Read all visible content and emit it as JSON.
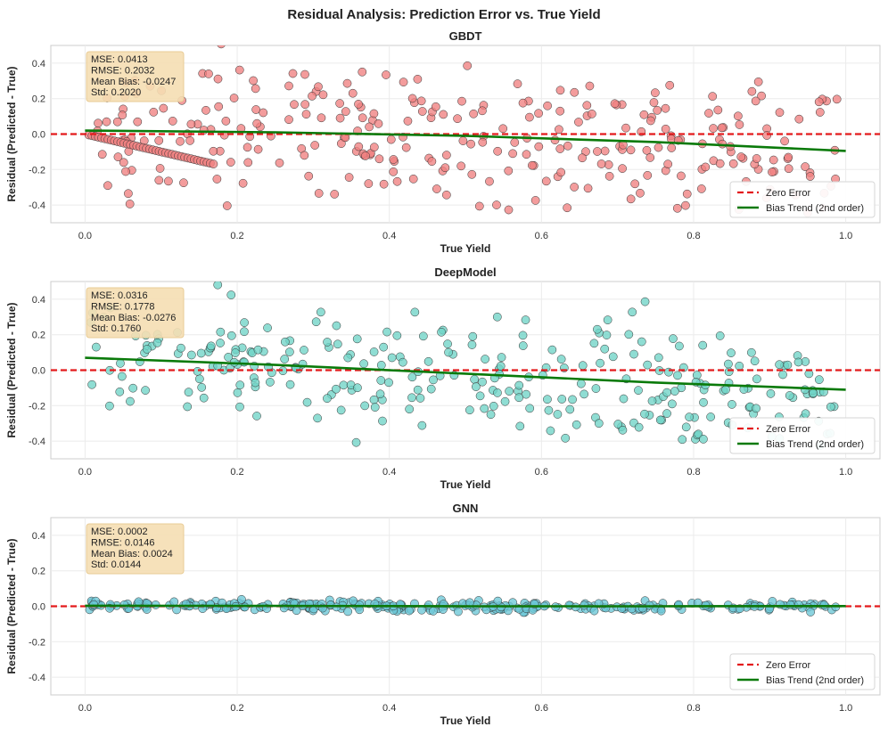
{
  "title": "Residual Analysis: Prediction Error vs.  True Yield",
  "chart_data": [
    {
      "type": "scatter",
      "title": "GBDT",
      "xlabel": "True Yield",
      "ylabel": "Residual (Predicted - True)",
      "xlim": [
        -0.045,
        1.045
      ],
      "ylim": [
        -0.5,
        0.5
      ],
      "xticks": [
        "0.0",
        "0.2",
        "0.4",
        "0.6",
        "0.8",
        "1.0"
      ],
      "yticks": [
        "-0.4",
        "-0.2",
        "0.0",
        "0.2",
        "0.4"
      ],
      "grid": true,
      "legend_position": "lower-right",
      "stats": [
        "MSE: 0.0413",
        "RMSE:  0.2032",
        "Mean Bias: -0.0247",
        "Std:  0.2020"
      ],
      "point_color": "#f08080",
      "spread": 0.2,
      "series": [
        {
          "name": "Zero Error",
          "style": "dashed",
          "color": "#e31a1c",
          "x": [
            -0.045,
            1.045
          ],
          "y": [
            0.0,
            0.0
          ]
        },
        {
          "name": "Bias Trend (2nd order)",
          "style": "solid",
          "color": "#0a7a0a",
          "x": [
            0.0,
            0.25,
            0.5,
            0.75,
            1.0
          ],
          "y": [
            0.02,
            0.01,
            -0.01,
            -0.045,
            -0.095
          ]
        }
      ]
    },
    {
      "type": "scatter",
      "title": "DeepModel",
      "xlabel": "True Yield",
      "ylabel": "Residual (Predicted - True)",
      "xlim": [
        -0.045,
        1.045
      ],
      "ylim": [
        -0.5,
        0.5
      ],
      "xticks": [
        "0.0",
        "0.2",
        "0.4",
        "0.6",
        "0.8",
        "1.0"
      ],
      "yticks": [
        "-0.4",
        "-0.2",
        "0.0",
        "0.2",
        "0.4"
      ],
      "grid": true,
      "legend_position": "lower-right",
      "stats": [
        "MSE: 0.0316",
        "RMSE:  0.1778",
        "Mean Bias: -0.0276",
        "Std:  0.1760"
      ],
      "point_color": "#6fd3c6",
      "spread": 0.17,
      "series": [
        {
          "name": "Zero Error",
          "style": "dashed",
          "color": "#e31a1c",
          "x": [
            -0.045,
            1.045
          ],
          "y": [
            0.0,
            0.0
          ]
        },
        {
          "name": "Bias Trend (2nd order)",
          "style": "solid",
          "color": "#0a7a0a",
          "x": [
            0.0,
            0.25,
            0.5,
            0.75,
            1.0
          ],
          "y": [
            0.07,
            0.03,
            -0.02,
            -0.07,
            -0.11
          ]
        }
      ]
    },
    {
      "type": "scatter",
      "title": "GNN",
      "xlabel": "True Yield",
      "ylabel": "Residual (Predicted - True)",
      "xlim": [
        -0.045,
        1.045
      ],
      "ylim": [
        -0.5,
        0.5
      ],
      "xticks": [
        "0.0",
        "0.2",
        "0.4",
        "0.6",
        "0.8",
        "1.0"
      ],
      "yticks": [
        "-0.4",
        "-0.2",
        "0.0",
        "0.2",
        "0.4"
      ],
      "grid": true,
      "legend_position": "lower-right",
      "stats": [
        "MSE: 0.0002",
        "RMSE:  0.0146",
        "Mean Bias: 0.0024",
        "Std:  0.0144"
      ],
      "point_color": "#6bc6d6",
      "spread": 0.014,
      "series": [
        {
          "name": "Zero Error",
          "style": "dashed",
          "color": "#e31a1c",
          "x": [
            -0.045,
            1.045
          ],
          "y": [
            0.0,
            0.0
          ]
        },
        {
          "name": "Bias Trend (2nd order)",
          "style": "solid",
          "color": "#0a7a0a",
          "x": [
            0.0,
            0.25,
            0.5,
            0.75,
            1.0
          ],
          "y": [
            0.003,
            0.002,
            0.0,
            0.0,
            0.001
          ]
        }
      ]
    }
  ]
}
